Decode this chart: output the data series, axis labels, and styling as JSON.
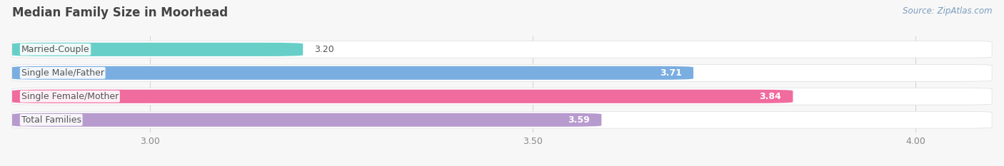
{
  "title": "Median Family Size in Moorhead",
  "source": "Source: ZipAtlas.com",
  "categories": [
    "Married-Couple",
    "Single Male/Father",
    "Single Female/Mother",
    "Total Families"
  ],
  "values": [
    3.2,
    3.71,
    3.84,
    3.59
  ],
  "colors": [
    "#68cfc8",
    "#7aaee0",
    "#f06c9e",
    "#b89bce"
  ],
  "xlim_left": 2.82,
  "xlim_right": 4.1,
  "xticks": [
    3.0,
    3.5,
    4.0
  ],
  "bar_height": 0.58,
  "background_color": "#f7f7f7",
  "row_bg_color": "#ebebeb",
  "bar_label_bg": "#ffffff",
  "label_color": "#555555",
  "title_color": "#444444",
  "source_color": "#7a9cbf",
  "tick_color": "#888888",
  "grid_color": "#d5d5d5"
}
